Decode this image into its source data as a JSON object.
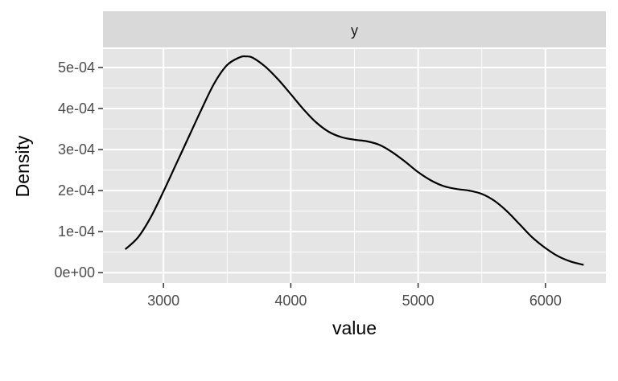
{
  "chart_data": {
    "type": "line",
    "facet_label": "y",
    "xlabel": "value",
    "ylabel": "Density",
    "xlim": [
      2525,
      6475
    ],
    "ylim": [
      -2.5e-05,
      0.000545
    ],
    "x_major_ticks": [
      3000,
      4000,
      5000,
      6000
    ],
    "x_tick_labels": [
      "3000",
      "4000",
      "5000",
      "6000"
    ],
    "x_minor_ticks": [
      3500,
      4500,
      5500
    ],
    "y_major_ticks": [
      0,
      0.0001,
      0.0002,
      0.0003,
      0.0004,
      0.0005
    ],
    "y_tick_labels": [
      "0e+00",
      "1e-04",
      "2e-04",
      "3e-04",
      "4e-04",
      "5e-04"
    ],
    "y_minor_ticks": [
      5e-05,
      0.00015,
      0.00025,
      0.00035,
      0.00045
    ],
    "grid": true,
    "colors": {
      "panel_bg": "#e5e5e5",
      "strip_bg": "#d9d9d9",
      "grid_major": "#ffffff",
      "line": "#000000",
      "tick": "#333333"
    },
    "series": [
      {
        "name": "density",
        "x": [
          2700,
          2800,
          2900,
          3000,
          3100,
          3200,
          3300,
          3400,
          3500,
          3600,
          3650,
          3700,
          3800,
          3900,
          4000,
          4100,
          4200,
          4300,
          4400,
          4500,
          4600,
          4700,
          4800,
          4900,
          5000,
          5100,
          5200,
          5300,
          5400,
          5500,
          5600,
          5700,
          5800,
          5900,
          6000,
          6100,
          6200,
          6300
        ],
        "y": [
          5.7e-05,
          8.6e-05,
          0.000135,
          0.000198,
          0.000265,
          0.000332,
          0.000399,
          0.000462,
          0.000506,
          0.000525,
          0.000527,
          0.000524,
          0.000502,
          0.000471,
          0.000435,
          0.000398,
          0.000366,
          0.000343,
          0.00033,
          0.000324,
          0.00032,
          0.000311,
          0.000293,
          0.00027,
          0.000245,
          0.000225,
          0.000211,
          0.000204,
          0.0002,
          0.000192,
          0.000175,
          0.000149,
          0.000117,
          8.5e-05,
          6e-05,
          4e-05,
          2.7e-05,
          1.9e-05
        ]
      }
    ]
  }
}
